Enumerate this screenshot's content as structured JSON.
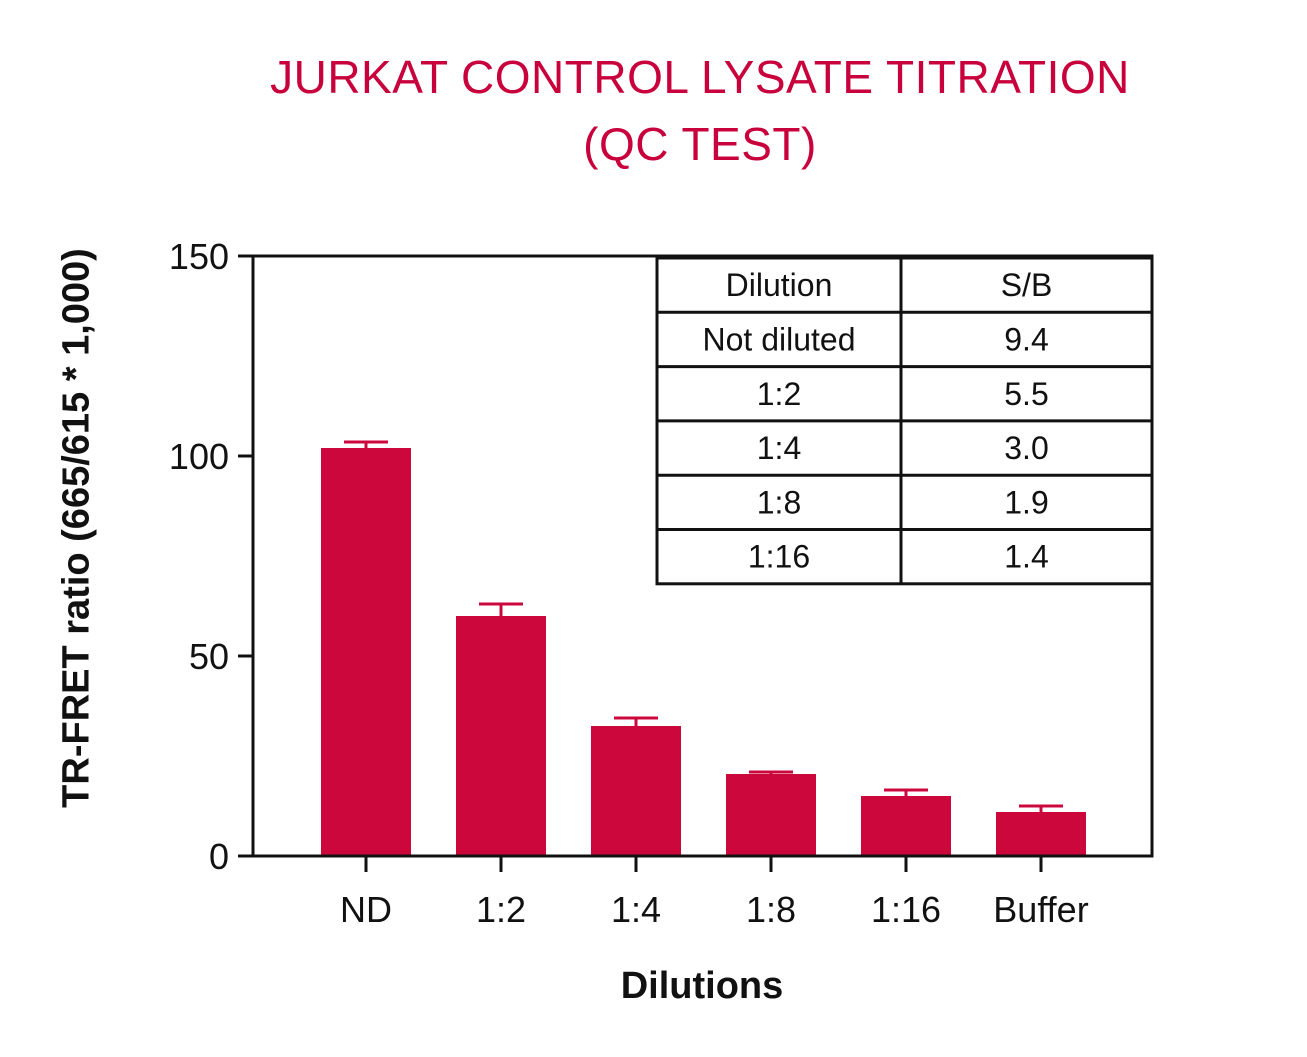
{
  "chart_data": {
    "type": "bar",
    "title": "JURKAT CONTROL LYSATE TITRATION",
    "subtitle": "(QC TEST)",
    "xlabel": "Dilutions",
    "ylabel": "TR-FRET ratio (665/615 * 1,000)",
    "categories": [
      "ND",
      "1:2",
      "1:4",
      "1:8",
      "1:16",
      "Buffer"
    ],
    "values": [
      102,
      60,
      32.5,
      20.5,
      15,
      11
    ],
    "errors": [
      1.5,
      3,
      2,
      0.5,
      1.5,
      1.5
    ],
    "ylim": [
      0,
      150
    ],
    "yticks": [
      "0",
      "50",
      "100",
      "150"
    ],
    "grid": false,
    "bar_color": "#cc073c",
    "title_color": "#c8003c",
    "inset_table": {
      "headers": [
        "Dilution",
        "S/B"
      ],
      "rows": [
        [
          "Not diluted",
          "9.4"
        ],
        [
          "1:2",
          "5.5"
        ],
        [
          "1:4",
          "3.0"
        ],
        [
          "1:8",
          "1.9"
        ],
        [
          "1:16",
          "1.4"
        ]
      ]
    }
  }
}
